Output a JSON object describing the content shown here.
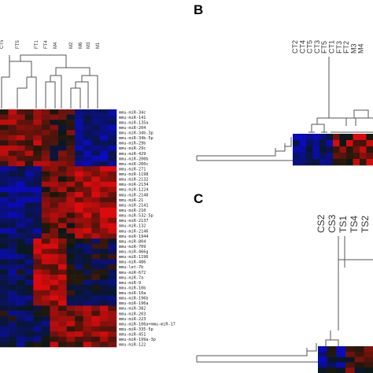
{
  "panel_a": {
    "column_labels": [
      "CT5",
      "FT5",
      "FT1",
      "FT4",
      "M4",
      "M2",
      "M6",
      "M3",
      "M1"
    ],
    "row_labels": [
      "mmu-miR-34c",
      "mmu-miR-141",
      "mmu-miR-135a",
      "mmu-miR-204",
      "mmu-miR-34b-3p",
      "mmu-miR-34b-5p",
      "mmu-miR-29b",
      "mmu-miR-29c",
      "mmu-miR-429",
      "mmu-miR-200b",
      "mmu-miR-200c",
      "mmu-miR-271",
      "mmu-miR-1198",
      "mmu-miR-2132",
      "mmu-miR-2134",
      "mmu-miR-1224",
      "mmu-miR-2140",
      "mmu-miR-21",
      "mmu-miR-2141",
      "mmu-miR-210",
      "mmu-miR-532-5p",
      "mmu-miR-2137",
      "mmu-miR-132",
      "mmu-miR-2146",
      "mmu-miR-1944",
      "mmu-miR-804",
      "mmu-miR-709",
      "mmu-miR-466g",
      "mmu-miR-1196",
      "mmu-miR-486",
      "mmu-let-7b",
      "mmu-miR-672",
      "mmu-miR-7a",
      "mmu-miR-9",
      "mmu-miR-10b",
      "mmu-miR-10a",
      "mmu-miR-196b",
      "mmu-miR-196a",
      "mmu-miR-382",
      "mmu-miR-203",
      "mmu-miR-223",
      "mmu-miR-106a+mmu-miR-17",
      "mmu-miR-335-5p",
      "mmu-miR-451",
      "mmu-miR-199a-3p",
      "mmu-miR-122"
    ]
  },
  "panel_b": {
    "letter": "B",
    "column_labels": [
      "CT2",
      "CT4",
      "CT5",
      "CT3",
      "FT5",
      "CT1",
      "FT3",
      "FT2",
      "M3",
      "M4"
    ]
  },
  "panel_c": {
    "letter": "C",
    "column_labels": [
      "CS2",
      "CS3",
      "TS1",
      "TS4",
      "TS2"
    ]
  },
  "colors": {
    "high": "#d11a1a",
    "low": "#1a1aa8",
    "mid": "#000000",
    "line": "#555555"
  }
}
